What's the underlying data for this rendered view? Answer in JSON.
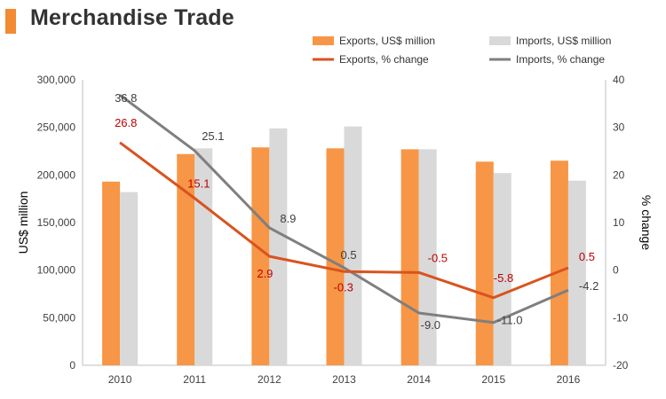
{
  "header": {
    "title": "Merchandise Trade"
  },
  "colors": {
    "accent": "#f28b31",
    "exports_bar": "#f79646",
    "imports_bar": "#d9d9d9",
    "exports_line": "#d9531e",
    "imports_line": "#7f7f7f",
    "exports_label": "#c00000",
    "imports_label": "#404040",
    "axis_text": "#404040"
  },
  "chart_data": {
    "type": "bar",
    "categories": [
      "2010",
      "2011",
      "2012",
      "2013",
      "2014",
      "2015",
      "2016"
    ],
    "bar_series": [
      {
        "name": "Exports, US$ million",
        "values": [
          193000,
          222000,
          229000,
          228000,
          227000,
          214000,
          215000
        ]
      },
      {
        "name": "Imports, US$ million",
        "values": [
          182000,
          228000,
          249000,
          251000,
          227000,
          202000,
          194000
        ]
      }
    ],
    "line_series": [
      {
        "name": "Exports, % change",
        "values": [
          26.8,
          15.1,
          2.9,
          -0.3,
          -0.5,
          -5.8,
          0.5
        ],
        "labels": [
          "26.8",
          "15.1",
          "2.9",
          "-0.3",
          "-0.5",
          "-5.8",
          "0.5"
        ]
      },
      {
        "name": "Imports, % change",
        "values": [
          36.8,
          25.1,
          8.9,
          0.5,
          -9.0,
          -11.0,
          -4.2
        ],
        "labels": [
          "36.8",
          "25.1",
          "8.9",
          "0.5",
          "-9.0",
          "-11.0",
          "-4.2"
        ]
      }
    ],
    "ylabel": "US$ million",
    "y2label": "% change",
    "ylim": [
      0,
      300000
    ],
    "y2lim": [
      -20,
      40
    ],
    "yticks": [
      "0",
      "50,000",
      "100,000",
      "150,000",
      "200,000",
      "250,000",
      "300,000"
    ],
    "y2ticks": [
      "-20",
      "-10",
      "0",
      "10",
      "20",
      "30",
      "40"
    ],
    "grid": false,
    "legend_position": "top-right"
  }
}
